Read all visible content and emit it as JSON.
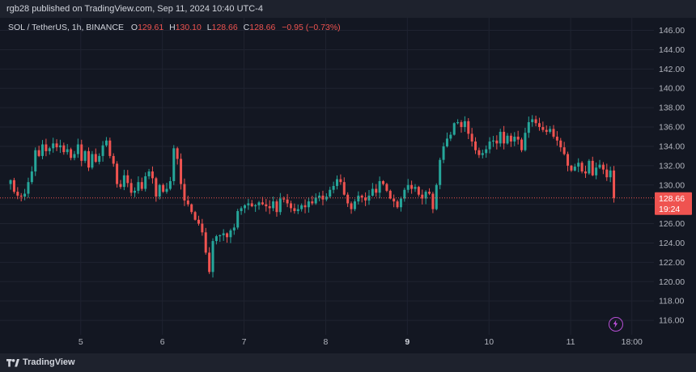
{
  "header": {
    "publisher_line": "rgb28 published on TradingView.com, Sep 11, 2024 10:40 UTC-4"
  },
  "legend": {
    "symbol": "SOL / TetherUS, 1h, BINANCE",
    "o_label": "O",
    "open": "129.61",
    "h_label": "H",
    "high": "130.10",
    "l_label": "L",
    "low": "128.66",
    "c_label": "C",
    "close": "128.66",
    "change": "−0.95 (−0.73%)"
  },
  "footer": {
    "brand": "TradingView"
  },
  "colors": {
    "up": "#26a69a",
    "down": "#ef5350",
    "background": "#131722",
    "grid": "#1f2330",
    "text": "#b2b5be"
  },
  "chart_data": {
    "type": "candlestick",
    "y_ticks": [
      "116.00",
      "118.00",
      "120.00",
      "122.00",
      "124.00",
      "126.00",
      "128.00",
      "130.00",
      "132.00",
      "134.00",
      "136.00",
      "138.00",
      "140.00",
      "142.00",
      "144.00",
      "146.00"
    ],
    "ylim": [
      114.5,
      147.3
    ],
    "x_ticks": [
      "5",
      "6",
      "7",
      "8",
      "9",
      "10",
      "11",
      "18:00"
    ],
    "x_tick_values": [
      5,
      6,
      7,
      8,
      9,
      10,
      11,
      11.75
    ],
    "xlim": [
      4.09,
      12.02
    ],
    "last_price_label": "128.66",
    "countdown_label": "19:24",
    "last_price": 128.66,
    "closes": [
      130.5,
      129.3,
      128.9,
      128.8,
      129.1,
      130.3,
      131.4,
      133.6,
      133.0,
      134.2,
      133.5,
      133.8,
      134.3,
      133.9,
      134.1,
      133.4,
      133.7,
      132.8,
      133.2,
      134.2,
      132.5,
      133.5,
      131.8,
      133.2,
      132.4,
      133.0,
      134.1,
      134.6,
      133.0,
      132.2,
      130.1,
      129.8,
      131.0,
      130.2,
      129.2,
      129.4,
      130.3,
      129.6,
      130.9,
      131.4,
      130.7,
      128.8,
      130.0,
      129.3,
      129.6,
      130.4,
      133.8,
      132.7,
      130.1,
      128.4,
      128.0,
      127.2,
      126.4,
      126.0,
      125.1,
      123.0,
      121.0,
      124.2,
      124.7,
      124.8,
      125.0,
      124.6,
      125.3,
      125.6,
      127.3,
      127.6,
      127.9,
      128.1,
      127.8,
      127.9,
      128.2,
      128.0,
      127.8,
      127.6,
      128.3,
      127.2,
      128.6,
      128.5,
      128.1,
      127.6,
      127.3,
      127.5,
      127.9,
      127.7,
      128.3,
      128.1,
      128.7,
      128.9,
      128.5,
      128.8,
      129.5,
      129.9,
      130.6,
      130.3,
      129.0,
      128.1,
      127.5,
      128.3,
      128.9,
      128.7,
      128.4,
      128.9,
      129.6,
      129.2,
      130.4,
      130.1,
      129.4,
      128.6,
      128.3,
      127.7,
      128.6,
      129.5,
      130.0,
      129.6,
      129.8,
      129.0,
      128.6,
      129.3,
      129.1,
      127.5,
      130.0,
      132.6,
      134.0,
      134.8,
      135.2,
      136.4,
      136.5,
      136.0,
      136.6,
      135.3,
      134.5,
      133.6,
      133.1,
      133.3,
      133.7,
      134.5,
      134.6,
      134.3,
      135.5,
      134.3,
      135.1,
      134.5,
      135.0,
      134.7,
      133.6,
      135.4,
      136.5,
      136.8,
      136.4,
      136.0,
      135.7,
      135.5,
      135.8,
      135.0,
      134.6,
      133.9,
      133.2,
      132.0,
      131.5,
      131.9,
      132.3,
      131.4,
      131.2,
      132.5,
      131.0,
      131.8,
      132.1,
      131.6,
      130.8,
      131.5,
      128.66
    ]
  }
}
